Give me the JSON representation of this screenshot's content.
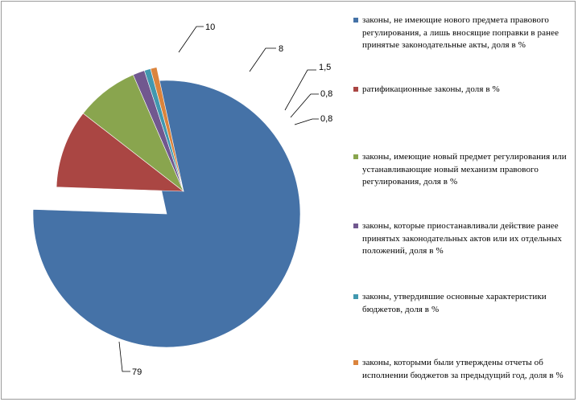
{
  "chart_data": {
    "type": "pie",
    "exploded": true,
    "slices": [
      {
        "label": "законы, не имеющие нового предмета правового регулирования, а лишь вносящие поправки в ранее принятые законодательные акты, доля в %",
        "value": 79,
        "value_label": "79",
        "color": "#4572A7"
      },
      {
        "label": "ратификационные законы, доля в %",
        "value": 10,
        "value_label": "10",
        "color": "#AA4643"
      },
      {
        "label": "законы, имеющие новый предмет регулирования или устанавливающие новый механизм правового регулирования, доля в %",
        "value": 8,
        "value_label": "8",
        "color": "#89A54E"
      },
      {
        "label": "законы, которые приостанавливали действие ранее принятых законодательных актов или их отдельных положений, доля в %",
        "value": 1.5,
        "value_label": "1,5",
        "color": "#71588F"
      },
      {
        "label": "законы, утвердившие основные характеристики бюджетов, доля в %",
        "value": 0.8,
        "value_label": "0,8",
        "color": "#4198AF"
      },
      {
        "label": "законы, которыми были утверждены отчеты об исполнении бюджетов за предыдущий год, доля в %",
        "value": 0.8,
        "value_label": "0,8",
        "color": "#DB843D"
      }
    ],
    "legend_position": "right"
  }
}
